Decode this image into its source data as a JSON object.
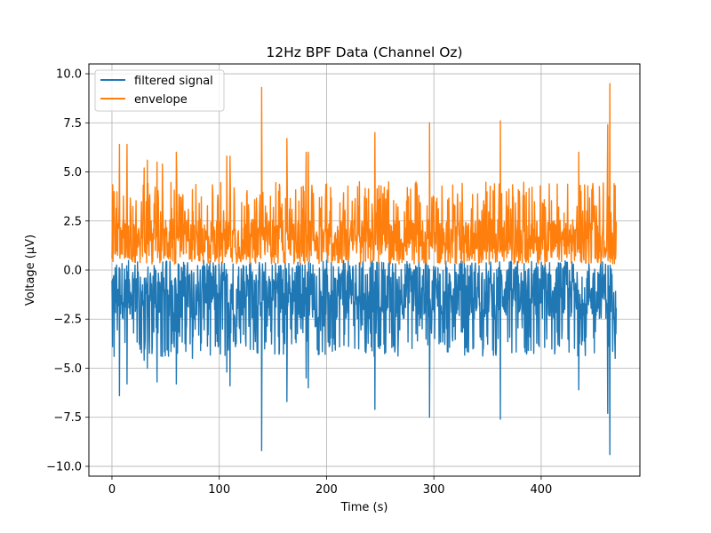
{
  "chart_data": {
    "type": "line",
    "title": "12Hz BPF Data (Channel Oz)",
    "xlabel": "Time (s)",
    "ylabel": "Voltage (µV)",
    "xlim": [
      -21.5,
      492
    ],
    "ylim": [
      -10.5,
      10.5
    ],
    "xticks": [
      0,
      100,
      200,
      300,
      400
    ],
    "xtick_labels": [
      "0",
      "100",
      "200",
      "300",
      "400"
    ],
    "yticks": [
      -10.0,
      -7.5,
      -5.0,
      -2.5,
      0.0,
      2.5,
      5.0,
      7.5,
      10.0
    ],
    "ytick_labels": [
      "−10.0",
      "−7.5",
      "−5.0",
      "−2.5",
      "0.0",
      "2.5",
      "5.0",
      "7.5",
      "10.0"
    ],
    "grid": true,
    "legend_position": "upper-left",
    "x_range": [
      0,
      470
    ],
    "series": [
      {
        "name": "filtered signal",
        "color": "#1f77b4",
        "baseline_band": [
          -2.5,
          0.5
        ],
        "peaks": [
          {
            "x": 0.5,
            "y": -3.9
          },
          {
            "x": 2,
            "y": -4.4
          },
          {
            "x": 7,
            "y": -6.4
          },
          {
            "x": 14,
            "y": -5.8
          },
          {
            "x": 30,
            "y": -4.6
          },
          {
            "x": 33,
            "y": -5.0
          },
          {
            "x": 42,
            "y": -5.7
          },
          {
            "x": 47,
            "y": -4.4
          },
          {
            "x": 60,
            "y": -5.8
          },
          {
            "x": 75,
            "y": -4.5
          },
          {
            "x": 107,
            "y": -5.2
          },
          {
            "x": 110,
            "y": -5.9
          },
          {
            "x": 139.5,
            "y": -9.2
          },
          {
            "x": 163,
            "y": -6.7
          },
          {
            "x": 181,
            "y": -5.5
          },
          {
            "x": 183,
            "y": -6.0
          },
          {
            "x": 245,
            "y": -7.1
          },
          {
            "x": 296,
            "y": -7.5
          },
          {
            "x": 362,
            "y": -7.6
          },
          {
            "x": 435,
            "y": -6.1
          },
          {
            "x": 462,
            "y": -7.3
          },
          {
            "x": 464,
            "y": -9.4
          },
          {
            "x": 469,
            "y": -4.5
          }
        ]
      },
      {
        "name": "envelope",
        "color": "#ff7f0e",
        "baseline_band": [
          0.3,
          2.6
        ],
        "peaks": [
          {
            "x": 0.5,
            "y": 3.9
          },
          {
            "x": 2,
            "y": 4.0
          },
          {
            "x": 7,
            "y": 6.4
          },
          {
            "x": 14,
            "y": 6.4
          },
          {
            "x": 30,
            "y": 5.2
          },
          {
            "x": 33,
            "y": 5.6
          },
          {
            "x": 42,
            "y": 5.5
          },
          {
            "x": 47,
            "y": 5.4
          },
          {
            "x": 60,
            "y": 6.0
          },
          {
            "x": 75,
            "y": 4.1
          },
          {
            "x": 107,
            "y": 5.8
          },
          {
            "x": 110,
            "y": 5.8
          },
          {
            "x": 139.5,
            "y": 9.3
          },
          {
            "x": 163,
            "y": 6.7
          },
          {
            "x": 181,
            "y": 6.0
          },
          {
            "x": 183,
            "y": 6.0
          },
          {
            "x": 245,
            "y": 7.0
          },
          {
            "x": 296,
            "y": 7.5
          },
          {
            "x": 362,
            "y": 7.6
          },
          {
            "x": 435,
            "y": 6.0
          },
          {
            "x": 462,
            "y": 7.4
          },
          {
            "x": 464,
            "y": 9.5
          },
          {
            "x": 469,
            "y": 4.3
          }
        ]
      }
    ]
  }
}
